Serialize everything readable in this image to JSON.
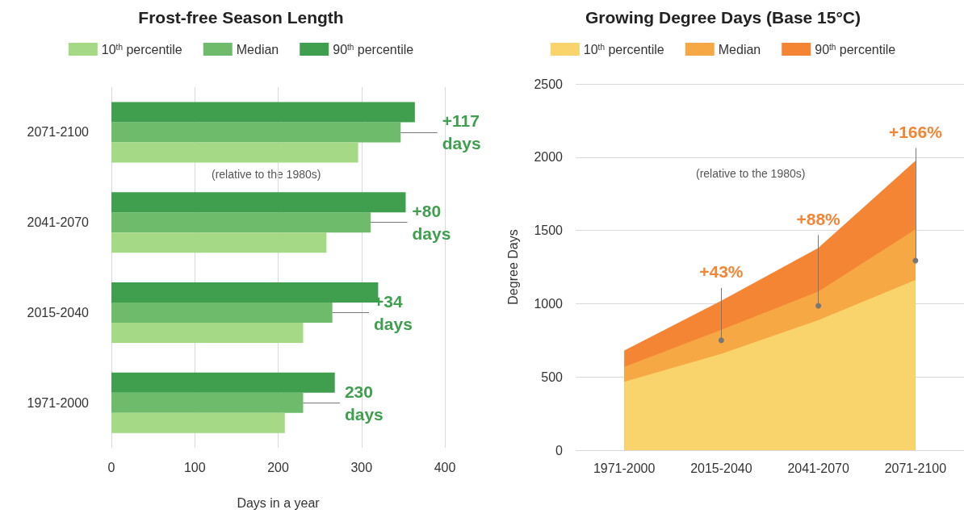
{
  "chart_data": [
    {
      "type": "bar",
      "orientation": "horizontal",
      "title": "Frost-free Season Length",
      "xlabel": "Days in a year",
      "categories": [
        "2071-2100",
        "2041-2070",
        "2015-2040",
        "1971-2000"
      ],
      "series": [
        {
          "name": "10$^{th}$ percentile",
          "color": "#a6d985",
          "values": [
            296,
            258,
            230,
            208
          ]
        },
        {
          "name": "Median",
          "color": "#6dbb6b",
          "values": [
            347,
            311,
            265,
            230
          ]
        },
        {
          "name": "90$^{th}$ percentile",
          "color": "#3f9f4f",
          "values": [
            364,
            353,
            320,
            268
          ]
        }
      ],
      "xlim": [
        0,
        400
      ],
      "xticks": [
        0,
        100,
        200,
        300,
        400
      ],
      "grid": "x",
      "legend": "top",
      "annotations": [
        {
          "text": "+117 days",
          "x": 347,
          "y": "2071-2100"
        },
        {
          "text": "+80 days",
          "x": 311,
          "y": "2041-2070"
        },
        {
          "text": "+34 days",
          "x": 265,
          "y": "2015-2040"
        },
        {
          "text": "230 days",
          "x": 230,
          "y": "1971-2000"
        },
        "(relative to the 1980s)"
      ]
    },
    {
      "type": "area",
      "title": "Growing Degree Days (Base 15°C)",
      "ylabel": "Degree Days",
      "categories": [
        "1971-2000",
        "2015-2040",
        "2041-2070",
        "2071-2100"
      ],
      "series": [
        {
          "name": "10$^{th}$ percentile",
          "color": "#f9d36b",
          "values": [
            467,
            658,
            888,
            1162
          ]
        },
        {
          "name": "Median",
          "color": "#f5a843",
          "values": [
            569,
            822,
            1083,
            1508
          ]
        },
        {
          "name": "90$^{th}$ percentile",
          "color": "#f38535",
          "values": [
            680,
            1020,
            1381,
            1975
          ]
        }
      ],
      "ylim": [
        0,
        2500
      ],
      "yticks": [
        0,
        500,
        1000,
        1500,
        2000,
        2500
      ],
      "grid": "y",
      "legend": "top",
      "marker": "none",
      "annotations": [
        {
          "text": "+43%",
          "x": "2015-2040",
          "y": 750
        },
        {
          "text": "+88%",
          "x": "2041-2070",
          "y": 986
        },
        {
          "text": "+166%",
          "x": "2071-2100",
          "y": 1294
        },
        "(relative to the 1980s)"
      ]
    }
  ]
}
